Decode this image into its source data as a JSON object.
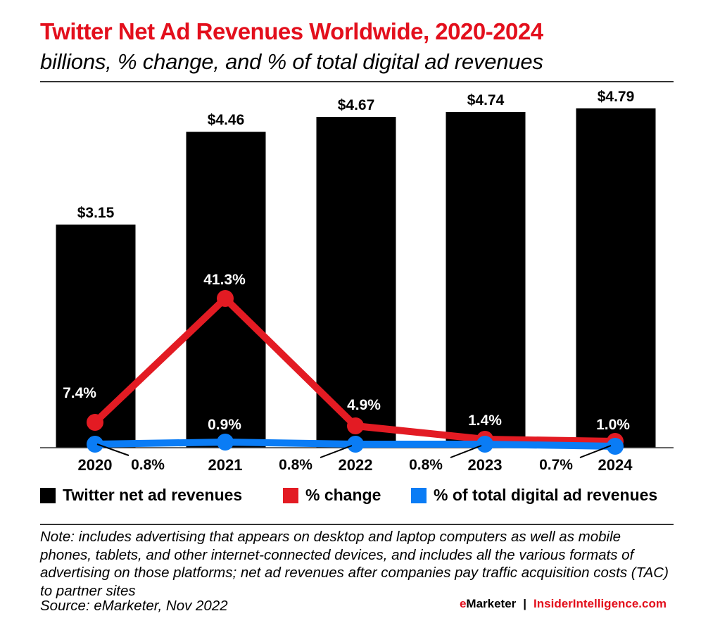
{
  "header": {
    "title": "Twitter Net Ad Revenues Worldwide, 2020-2024",
    "subtitle": "billions, % change, and % of total digital ad revenues"
  },
  "colors": {
    "title": "#e30f1c",
    "bars": "#000000",
    "pct_change": "#e31b23",
    "pct_total": "#0a7cf5"
  },
  "chart_data": {
    "type": "bar",
    "title": "Twitter Net Ad Revenues Worldwide, 2020-2024",
    "subtitle": "billions, % change, and % of total digital ad revenues",
    "categories": [
      "2020",
      "2021",
      "2022",
      "2023",
      "2024"
    ],
    "xlabel": "",
    "ylabel": "",
    "ylim": [
      0,
      5
    ],
    "grid": false,
    "legend_position": "bottom",
    "series": [
      {
        "name": "Twitter net ad revenues",
        "type": "bar",
        "unit": "billions",
        "values": [
          3.15,
          4.46,
          4.67,
          4.74,
          4.79
        ],
        "labels": [
          "$3.15",
          "$4.46",
          "$4.67",
          "$4.74",
          "$4.79"
        ]
      },
      {
        "name": "% change",
        "type": "line",
        "values": [
          7.4,
          41.3,
          4.9,
          1.4,
          1.0
        ],
        "labels": [
          "7.4%",
          "41.3%",
          "4.9%",
          "1.4%",
          "1.0%"
        ]
      },
      {
        "name": "% of total digital ad revenues",
        "type": "line",
        "values": [
          0.8,
          0.9,
          0.8,
          0.8,
          0.7
        ],
        "labels": [
          "0.8%",
          "0.9%",
          "0.8%",
          "0.8%",
          "0.7%"
        ]
      }
    ]
  },
  "legend": [
    {
      "label": "Twitter net ad revenues",
      "color": "#000000"
    },
    {
      "label": "% change",
      "color": "#e31b23"
    },
    {
      "label": "% of total digital ad revenues",
      "color": "#0a7cf5"
    }
  ],
  "footer": {
    "note": "Note: includes advertising that appears on desktop and laptop computers as well as mobile phones, tablets, and other internet-connected devices, and includes all the various formats of advertising on those platforms; net ad revenues after companies pay traffic acquisition costs (TAC) to partner sites",
    "source": "Source: eMarketer, Nov 2022",
    "brand_e": "e",
    "brand_marketer": "Marketer",
    "brand_sep": "|",
    "brand_site": "InsiderIntelligence.com"
  }
}
